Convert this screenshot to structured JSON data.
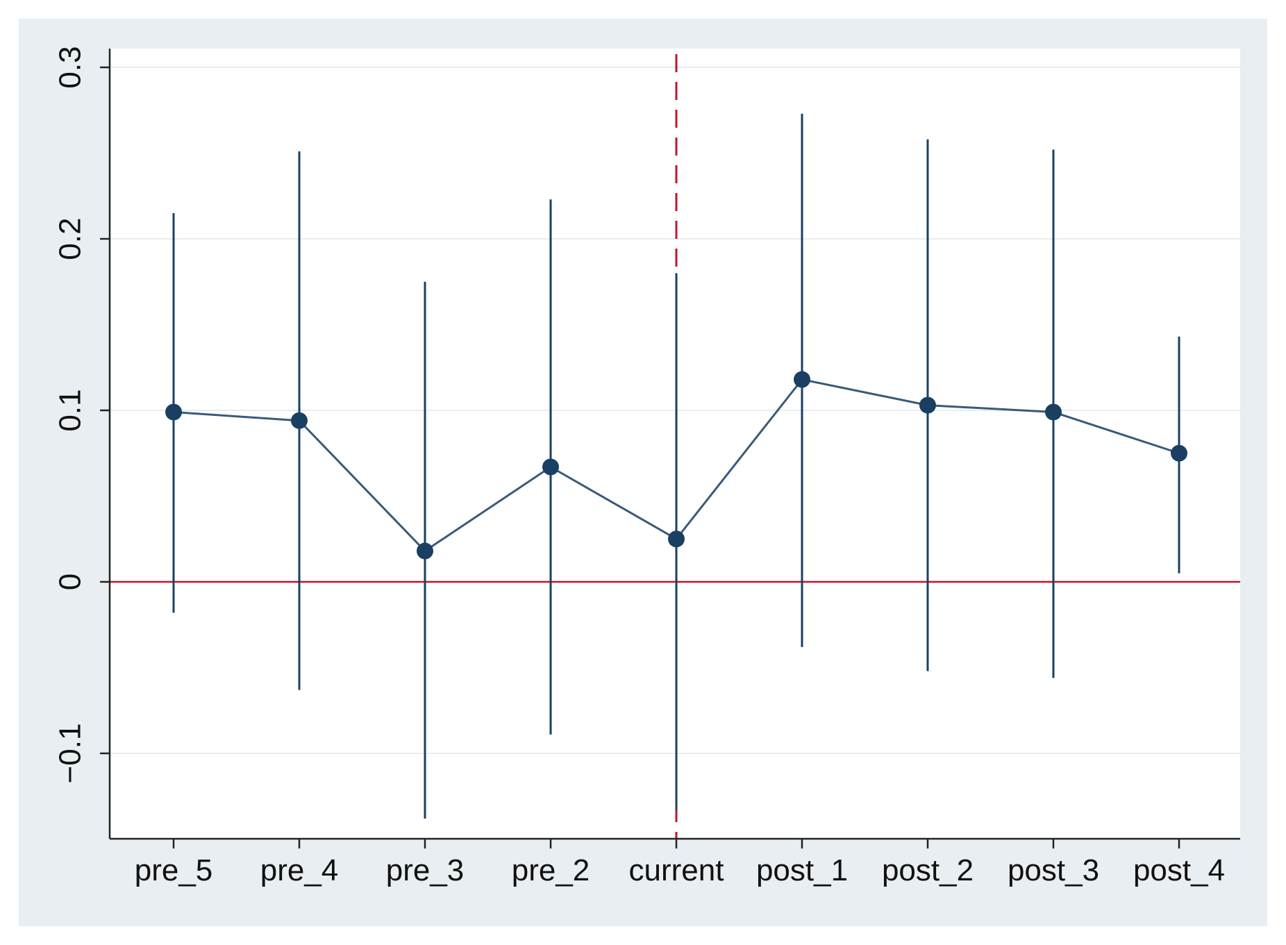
{
  "chart_data": {
    "type": "scatter",
    "title": "",
    "xlabel": "",
    "ylabel": "",
    "categories": [
      "pre_5",
      "pre_4",
      "pre_3",
      "pre_2",
      "current",
      "post_1",
      "post_2",
      "post_3",
      "post_4"
    ],
    "series": [
      {
        "values": [
          0.099,
          0.094,
          0.018,
          0.067,
          0.025,
          0.118,
          0.103,
          0.099,
          0.075
        ],
        "ci_lower": [
          -0.018,
          -0.063,
          -0.138,
          -0.089,
          -0.133,
          -0.038,
          -0.052,
          -0.056,
          0.005
        ],
        "ci_upper": [
          0.215,
          0.251,
          0.175,
          0.223,
          0.18,
          0.273,
          0.258,
          0.252,
          0.143
        ]
      }
    ],
    "yticks": [
      -0.1,
      0,
      0.1,
      0.2,
      0.3
    ],
    "ytick_labels": [
      "−0.1",
      "0",
      "0.1",
      "0.2",
      "0.3"
    ],
    "ylim": [
      -0.15,
      0.31
    ],
    "reference_lines": {
      "horizontal_at": 0,
      "vertical_at_category": "current"
    },
    "grid": "horizontal",
    "legend": "none",
    "colors": {
      "series": "#1a3f63",
      "reference": "#c8102e",
      "grid": "#e6eef2",
      "frame_background": "#e8eef1",
      "plot_background": "#ffffff"
    }
  }
}
